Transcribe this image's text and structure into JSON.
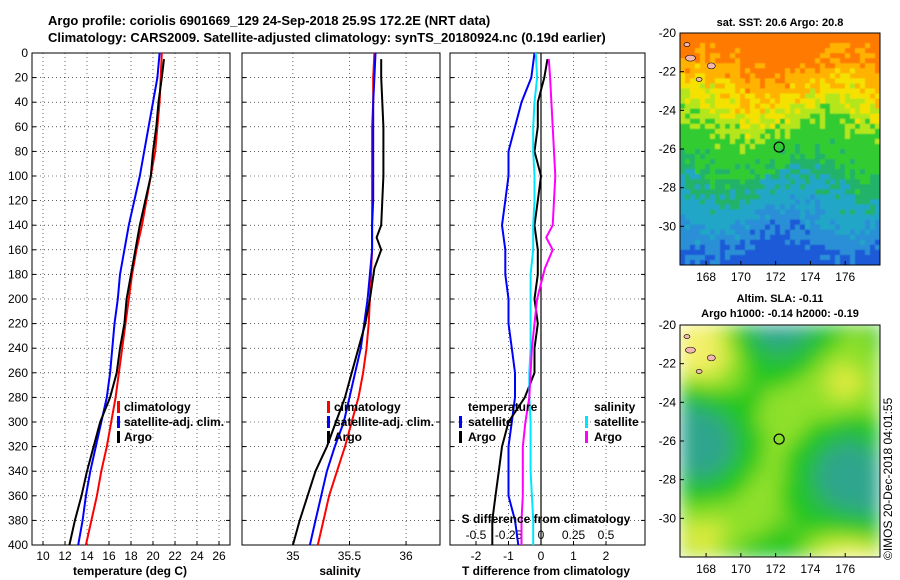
{
  "title": {
    "line1": "Argo profile: coriolis 6901669_129 24-Sep-2018 25.9S 172.2E (NRT data)",
    "line2": "Climatology: CARS2009. Satellite-adjusted climatology: synTS_20180924.nc (0.19d earlier)"
  },
  "colors": {
    "climatology": "#ff0000",
    "satellite": "#0000ff",
    "argo": "#000000",
    "sat_salinity": "#00e5ff",
    "argo_salinity": "#ff00ff"
  },
  "depth_axis": {
    "ticks": [
      "0",
      "20",
      "40",
      "60",
      "80",
      "100",
      "120",
      "140",
      "160",
      "180",
      "200",
      "220",
      "240",
      "260",
      "280",
      "300",
      "320",
      "340",
      "360",
      "380",
      "400"
    ]
  },
  "legend": {
    "climatology": "climatology",
    "satellite_adj": "satellite-adj. clim.",
    "argo": "Argo",
    "temperature": "temperature",
    "salinity": "salinity",
    "satellite": "satellite"
  },
  "chart_data": [
    {
      "type": "line",
      "name": "temperature-profile",
      "xlabel": "temperature (deg C)",
      "ylabel": "depth",
      "xlim": [
        9,
        27
      ],
      "ylim": [
        400,
        0
      ],
      "xticks": [
        10,
        12,
        14,
        16,
        18,
        20,
        22,
        24,
        26
      ],
      "series": [
        {
          "name": "climatology",
          "color": "#ff0000",
          "points": [
            [
              20.8,
              0
            ],
            [
              20.7,
              20
            ],
            [
              20.6,
              40
            ],
            [
              20.4,
              60
            ],
            [
              20.2,
              80
            ],
            [
              19.8,
              100
            ],
            [
              19.4,
              120
            ],
            [
              19.0,
              140
            ],
            [
              18.5,
              160
            ],
            [
              18.1,
              180
            ],
            [
              17.8,
              200
            ],
            [
              17.5,
              220
            ],
            [
              17.2,
              240
            ],
            [
              16.9,
              260
            ],
            [
              16.6,
              280
            ],
            [
              16.2,
              300
            ],
            [
              15.8,
              320
            ],
            [
              15.3,
              340
            ],
            [
              14.9,
              360
            ],
            [
              14.4,
              380
            ],
            [
              13.9,
              400
            ]
          ]
        },
        {
          "name": "satellite-adj. clim.",
          "color": "#0000ff",
          "points": [
            [
              20.6,
              0
            ],
            [
              20.4,
              20
            ],
            [
              20.0,
              40
            ],
            [
              19.6,
              60
            ],
            [
              19.2,
              80
            ],
            [
              18.8,
              100
            ],
            [
              18.3,
              120
            ],
            [
              17.8,
              140
            ],
            [
              17.4,
              160
            ],
            [
              17.0,
              180
            ],
            [
              16.8,
              200
            ],
            [
              16.5,
              220
            ],
            [
              16.3,
              240
            ],
            [
              16.1,
              260
            ],
            [
              15.8,
              280
            ],
            [
              15.3,
              300
            ],
            [
              14.8,
              320
            ],
            [
              14.3,
              340
            ],
            [
              13.9,
              360
            ],
            [
              13.6,
              380
            ],
            [
              13.2,
              400
            ]
          ]
        },
        {
          "name": "Argo",
          "color": "#000000",
          "points": [
            [
              21.0,
              5
            ],
            [
              20.8,
              20
            ],
            [
              20.5,
              40
            ],
            [
              20.3,
              60
            ],
            [
              20.0,
              80
            ],
            [
              19.8,
              100
            ],
            [
              19.3,
              120
            ],
            [
              18.8,
              140
            ],
            [
              18.4,
              160
            ],
            [
              18.0,
              180
            ],
            [
              17.6,
              200
            ],
            [
              17.4,
              220
            ],
            [
              17.0,
              240
            ],
            [
              16.7,
              260
            ],
            [
              16.1,
              280
            ],
            [
              15.2,
              300
            ],
            [
              14.6,
              320
            ],
            [
              14.0,
              340
            ],
            [
              13.5,
              360
            ],
            [
              12.9,
              380
            ],
            [
              12.4,
              400
            ]
          ]
        }
      ]
    },
    {
      "type": "line",
      "name": "salinity-profile",
      "xlabel": "salinity",
      "ylabel": "depth",
      "xlim": [
        34.55,
        36.3
      ],
      "ylim": [
        400,
        0
      ],
      "xticks": [
        35,
        35.5,
        36
      ],
      "xticklabels": [
        "35",
        "35.5",
        "36"
      ],
      "series": [
        {
          "name": "climatology",
          "color": "#ff0000",
          "points": [
            [
              35.72,
              0
            ],
            [
              35.71,
              20
            ],
            [
              35.71,
              40
            ],
            [
              35.7,
              60
            ],
            [
              35.7,
              80
            ],
            [
              35.7,
              100
            ],
            [
              35.7,
              120
            ],
            [
              35.7,
              140
            ],
            [
              35.7,
              160
            ],
            [
              35.69,
              180
            ],
            [
              35.68,
              200
            ],
            [
              35.67,
              220
            ],
            [
              35.65,
              240
            ],
            [
              35.62,
              260
            ],
            [
              35.58,
              280
            ],
            [
              35.52,
              300
            ],
            [
              35.46,
              320
            ],
            [
              35.39,
              340
            ],
            [
              35.32,
              360
            ],
            [
              35.27,
              380
            ],
            [
              35.22,
              400
            ]
          ]
        },
        {
          "name": "satellite-adj. clim.",
          "color": "#0000ff",
          "points": [
            [
              35.73,
              0
            ],
            [
              35.72,
              20
            ],
            [
              35.71,
              40
            ],
            [
              35.71,
              60
            ],
            [
              35.71,
              80
            ],
            [
              35.71,
              100
            ],
            [
              35.71,
              120
            ],
            [
              35.7,
              140
            ],
            [
              35.7,
              160
            ],
            [
              35.68,
              180
            ],
            [
              35.66,
              200
            ],
            [
              35.63,
              220
            ],
            [
              35.6,
              240
            ],
            [
              35.55,
              260
            ],
            [
              35.5,
              280
            ],
            [
              35.45,
              300
            ],
            [
              35.37,
              320
            ],
            [
              35.3,
              340
            ],
            [
              35.25,
              360
            ],
            [
              35.2,
              380
            ],
            [
              35.15,
              400
            ]
          ]
        },
        {
          "name": "Argo",
          "color": "#000000",
          "points": [
            [
              35.78,
              5
            ],
            [
              35.78,
              20
            ],
            [
              35.79,
              40
            ],
            [
              35.8,
              60
            ],
            [
              35.8,
              80
            ],
            [
              35.8,
              100
            ],
            [
              35.79,
              120
            ],
            [
              35.78,
              140
            ],
            [
              35.74,
              150
            ],
            [
              35.78,
              160
            ],
            [
              35.72,
              175
            ],
            [
              35.68,
              200
            ],
            [
              35.64,
              220
            ],
            [
              35.58,
              240
            ],
            [
              35.52,
              260
            ],
            [
              35.46,
              280
            ],
            [
              35.38,
              300
            ],
            [
              35.3,
              320
            ],
            [
              35.2,
              340
            ],
            [
              35.13,
              360
            ],
            [
              35.06,
              380
            ],
            [
              35.0,
              400
            ]
          ]
        }
      ]
    },
    {
      "type": "line",
      "name": "difference-profile",
      "xlabel": "T difference from climatology",
      "secondary_xlabel": "S difference from climatology",
      "ylabel": "depth",
      "xlim": [
        -2.8,
        3.2
      ],
      "ylim": [
        400,
        0
      ],
      "xticks": [
        -2,
        -1,
        0,
        1,
        2
      ],
      "s_xticks": [
        "-0.5",
        "-0.25",
        "0",
        "0.25",
        "0.5"
      ],
      "series": [
        {
          "name": "temperature satellite",
          "color": "#0000ff",
          "points": [
            [
              -0.2,
              0
            ],
            [
              -0.3,
              20
            ],
            [
              -0.6,
              40
            ],
            [
              -0.8,
              60
            ],
            [
              -1.0,
              80
            ],
            [
              -1.0,
              100
            ],
            [
              -1.1,
              120
            ],
            [
              -1.2,
              140
            ],
            [
              -1.1,
              160
            ],
            [
              -1.1,
              180
            ],
            [
              -1.0,
              200
            ],
            [
              -1.0,
              220
            ],
            [
              -0.9,
              240
            ],
            [
              -0.8,
              260
            ],
            [
              -0.8,
              280
            ],
            [
              -0.9,
              300
            ],
            [
              -1.0,
              320
            ],
            [
              -1.0,
              340
            ],
            [
              -1.0,
              360
            ],
            [
              -0.8,
              380
            ],
            [
              -0.7,
              400
            ]
          ]
        },
        {
          "name": "temperature Argo",
          "color": "#000000",
          "points": [
            [
              0.2,
              5
            ],
            [
              0.1,
              20
            ],
            [
              -0.1,
              40
            ],
            [
              -0.1,
              60
            ],
            [
              -0.2,
              80
            ],
            [
              0.0,
              100
            ],
            [
              -0.1,
              120
            ],
            [
              -0.2,
              140
            ],
            [
              -0.1,
              160
            ],
            [
              -0.1,
              180
            ],
            [
              -0.2,
              200
            ],
            [
              -0.1,
              220
            ],
            [
              -0.2,
              240
            ],
            [
              -0.2,
              260
            ],
            [
              -0.5,
              280
            ],
            [
              -1.0,
              300
            ],
            [
              -1.2,
              320
            ],
            [
              -1.3,
              340
            ],
            [
              -1.4,
              360
            ],
            [
              -1.5,
              380
            ],
            [
              -1.5,
              400
            ]
          ]
        },
        {
          "name": "salinity satellite",
          "color": "#00e5ff",
          "points": [
            [
              -0.04,
              0
            ],
            [
              -0.03,
              20
            ],
            [
              -0.05,
              40
            ],
            [
              -0.06,
              60
            ],
            [
              -0.06,
              80
            ],
            [
              -0.05,
              100
            ],
            [
              -0.05,
              120
            ],
            [
              -0.06,
              140
            ],
            [
              -0.06,
              160
            ],
            [
              -0.08,
              180
            ],
            [
              -0.08,
              200
            ],
            [
              -0.08,
              220
            ],
            [
              -0.08,
              240
            ],
            [
              -0.09,
              260
            ],
            [
              -0.09,
              280
            ],
            [
              -0.08,
              300
            ],
            [
              -0.08,
              320
            ],
            [
              -0.08,
              340
            ],
            [
              -0.07,
              360
            ],
            [
              -0.06,
              380
            ],
            [
              -0.06,
              400
            ]
          ]
        },
        {
          "name": "salinity Argo",
          "color": "#ff00ff",
          "points": [
            [
              0.06,
              5
            ],
            [
              0.07,
              20
            ],
            [
              0.08,
              40
            ],
            [
              0.09,
              60
            ],
            [
              0.1,
              80
            ],
            [
              0.11,
              100
            ],
            [
              0.1,
              120
            ],
            [
              0.09,
              140
            ],
            [
              0.04,
              150
            ],
            [
              0.09,
              160
            ],
            [
              0.03,
              175
            ],
            [
              -0.03,
              200
            ],
            [
              -0.05,
              220
            ],
            [
              -0.07,
              240
            ],
            [
              -0.08,
              260
            ],
            [
              -0.09,
              280
            ],
            [
              -0.12,
              300
            ],
            [
              -0.14,
              320
            ],
            [
              -0.14,
              340
            ],
            [
              -0.14,
              360
            ],
            [
              -0.15,
              380
            ],
            [
              -0.15,
              400
            ]
          ]
        }
      ]
    },
    {
      "type": "heatmap",
      "name": "sst-map",
      "title": "sat. SST: 20.6 Argo: 20.8",
      "xlim": [
        166.5,
        178
      ],
      "ylim": [
        -32,
        -20
      ],
      "xticks": [
        "168",
        "170",
        "172",
        "174",
        "176"
      ],
      "yticks": [
        "-20",
        "-22",
        "-24",
        "-26",
        "-28",
        "-30"
      ],
      "marker": {
        "lon": 172.2,
        "lat": -25.9
      }
    },
    {
      "type": "heatmap",
      "name": "sla-map",
      "title_line1": "Altim. SLA: -0.11",
      "title_line2": "Argo h1000: -0.14 h2000: -0.19",
      "xlim": [
        166.5,
        178
      ],
      "ylim": [
        -32,
        -20
      ],
      "xticks": [
        "168",
        "170",
        "172",
        "174",
        "176"
      ],
      "yticks": [
        "-20",
        "-22",
        "-24",
        "-26",
        "-28",
        "-30"
      ],
      "marker": {
        "lon": 172.2,
        "lat": -25.9
      }
    }
  ],
  "footer": {
    "imos_credit": "©IMOS 20-Dec-2018 04:01:55"
  }
}
